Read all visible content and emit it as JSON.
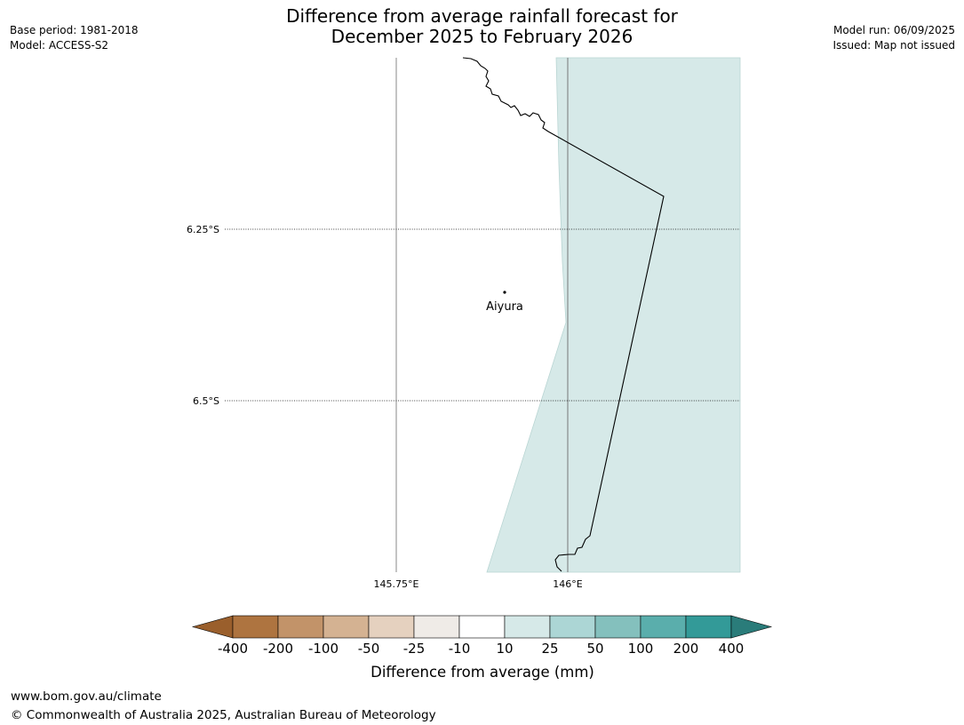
{
  "header": {
    "title_line1": "Difference from average rainfall forecast for",
    "title_line2": "December 2025 to February 2026",
    "left_line1": "Base period: 1981-2018",
    "left_line2": "Model: ACCESS-S2",
    "right_line1": "Model run: 06/09/2025",
    "right_line2": "Issued: Map not issued"
  },
  "map": {
    "lat_labels": [
      "6.25°S",
      "6.5°S"
    ],
    "lon_labels": [
      "145.75°E",
      "146°E"
    ],
    "place": "Aiyura",
    "shaded_category": "10 to 25",
    "shade_color": "#d6e9e8",
    "coast_color": "#000000"
  },
  "legend": {
    "ticks": [
      "-400",
      "-200",
      "-100",
      "-50",
      "-25",
      "-10",
      "10",
      "25",
      "50",
      "100",
      "200",
      "400"
    ],
    "colors": [
      "#9a5f2c",
      "#ae7440",
      "#c29369",
      "#d4b292",
      "#e5d1bf",
      "#efebe7",
      "#ffffff",
      "#d6e9e8",
      "#acd6d5",
      "#84c0bd",
      "#5aaeac",
      "#339a98",
      "#2a7c7a"
    ],
    "label": "Difference from average (mm)"
  },
  "footer": {
    "line1": "www.bom.gov.au/climate",
    "line2": "© Commonwealth of Australia 2025, Australian Bureau of Meteorology"
  }
}
